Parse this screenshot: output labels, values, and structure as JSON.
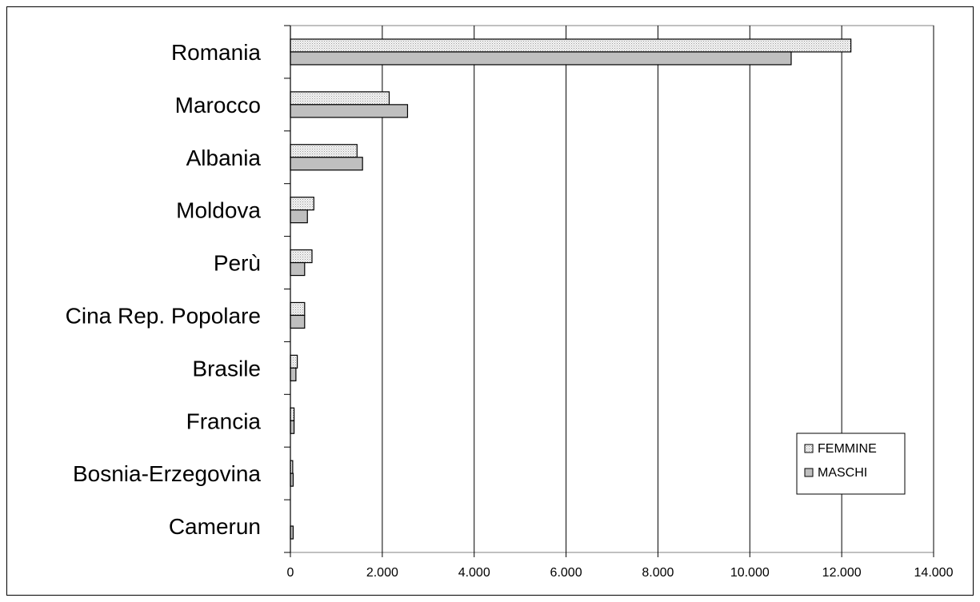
{
  "chart_data": {
    "type": "bar",
    "orientation": "horizontal",
    "title": "",
    "xlabel": "",
    "ylabel": "",
    "categories": [
      "Romania",
      "Marocco",
      "Albania",
      "Moldova",
      "Perù",
      "Cina Rep. Popolare",
      "Brasile",
      "Francia",
      "Bosnia-Erzegovina",
      "Camerun"
    ],
    "series": [
      {
        "name": "FEMMINE",
        "values": [
          12200,
          2150,
          1450,
          510,
          470,
          310,
          150,
          80,
          50,
          0
        ],
        "color": "#e8e8e8",
        "pattern": "dotted"
      },
      {
        "name": "MASCHI",
        "values": [
          10900,
          2550,
          1570,
          370,
          310,
          310,
          120,
          80,
          60,
          60
        ],
        "color": "#bfbfbf",
        "pattern": "solid"
      }
    ],
    "xlim": [
      0,
      14000
    ],
    "x_ticks": [
      "0",
      "2.000",
      "4.000",
      "6.000",
      "8.000",
      "10.000",
      "12.000",
      "14.000"
    ],
    "grid": "vertical",
    "legend_position": "bottom-right"
  }
}
